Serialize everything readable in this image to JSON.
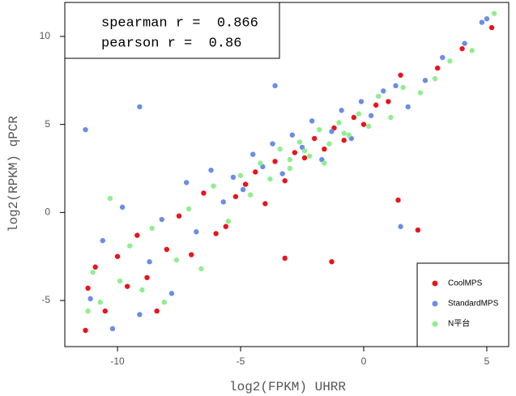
{
  "chart_data": {
    "type": "scatter",
    "xlabel": "log2(FPKM) UHRR",
    "ylabel": "log2(RPKM) qPCR",
    "annotations": [
      "spearman r =  0.866",
      "pearson r =  0.86"
    ],
    "xlim": [
      -12.14,
      5.89
    ],
    "ylim": [
      -7.62,
      11.93
    ],
    "xticks": [
      -10,
      -5,
      0,
      5
    ],
    "yticks": [
      -5,
      0,
      5,
      10
    ],
    "legend": "lower right",
    "series": [
      {
        "name": "CoolMPS",
        "color": "#e8141e",
        "x": [
          -11.3,
          -11.2,
          -10.9,
          -10.5,
          -10,
          -9.6,
          -9.2,
          -8.8,
          -8.4,
          -8,
          -7.5,
          -7,
          -6.5,
          -6,
          -5.6,
          -5.2,
          -4.8,
          -4.4,
          -4,
          -3.6,
          -3.2,
          -2.8,
          -2.4,
          -2,
          -1.6,
          -1.2,
          -0.8,
          -0.4,
          0,
          0.5,
          1,
          1.5,
          2.2,
          3,
          4,
          5.2,
          -3.2,
          -1.3,
          1.4
        ],
        "values": [
          -6.7,
          -4.3,
          -3.1,
          -5.6,
          -2.5,
          -4.2,
          -1.3,
          -3.7,
          -5.6,
          -2.1,
          -0.2,
          -2.4,
          1.1,
          -1.2,
          -0.8,
          0.9,
          1.6,
          2.3,
          0.5,
          2.9,
          1.8,
          3.4,
          3.1,
          4.2,
          3.6,
          4.8,
          4.1,
          5.4,
          5.0,
          6.1,
          6.3,
          7.8,
          -1.0,
          8.2,
          9.3,
          10.5,
          -2.6,
          -2.8,
          0.7
        ]
      },
      {
        "name": "StandardMPS",
        "color": "#6a8ee6",
        "x": [
          -11.3,
          -11.1,
          -10.6,
          -10.2,
          -9.8,
          -9.1,
          -8.7,
          -8.2,
          -7.8,
          -7.2,
          -6.8,
          -6.2,
          -5.7,
          -5.3,
          -4.9,
          -4.5,
          -4.1,
          -3.7,
          -3.3,
          -2.9,
          -2.5,
          -2.1,
          -1.7,
          -1.3,
          -0.9,
          -0.5,
          -0.1,
          0.3,
          0.8,
          1.3,
          1.8,
          2.5,
          3.2,
          4.1,
          4.8,
          -9.1,
          -3.6,
          1.5,
          5.0
        ],
        "values": [
          4.7,
          -4.9,
          -1.6,
          -6.6,
          0.3,
          -5.8,
          -2.8,
          -0.4,
          -4.6,
          1.7,
          -1.1,
          2.4,
          0.6,
          2.0,
          1.3,
          3.3,
          2.6,
          3.9,
          2.2,
          4.4,
          3.7,
          5.2,
          3.0,
          4.6,
          5.8,
          4.2,
          6.3,
          5.5,
          6.9,
          7.2,
          6.0,
          7.5,
          8.8,
          9.6,
          10.8,
          6.0,
          7.2,
          -0.8,
          11.0
        ]
      },
      {
        "name": "N平台",
        "color": "#90ee90",
        "x": [
          -11.2,
          -11,
          -10.7,
          -10.3,
          -9.9,
          -9.5,
          -9,
          -8.6,
          -8.1,
          -7.6,
          -7.1,
          -6.6,
          -6.1,
          -5.5,
          -5,
          -4.6,
          -4.2,
          -3.8,
          -3.4,
          -3,
          -2.6,
          -2.2,
          -1.8,
          -1.4,
          -1,
          -0.6,
          -0.2,
          0.2,
          0.6,
          1.1,
          1.6,
          2.3,
          2.9,
          3.5,
          4.4,
          5.3,
          -2.4,
          -0.8,
          -1.6,
          -3.0
        ],
        "values": [
          -5.6,
          -3.4,
          -5.1,
          0.8,
          -3.9,
          -1.9,
          -4.4,
          -0.9,
          -5.1,
          -2.7,
          0.2,
          -3.2,
          1.5,
          -0.5,
          2.1,
          1.0,
          2.8,
          1.9,
          3.6,
          2.5,
          4.0,
          3.2,
          4.7,
          3.9,
          5.1,
          4.4,
          5.6,
          4.9,
          6.6,
          5.4,
          7.1,
          6.8,
          7.6,
          8.6,
          9.2,
          11.3,
          3.5,
          4.5,
          2.8,
          3.0
        ]
      }
    ]
  }
}
